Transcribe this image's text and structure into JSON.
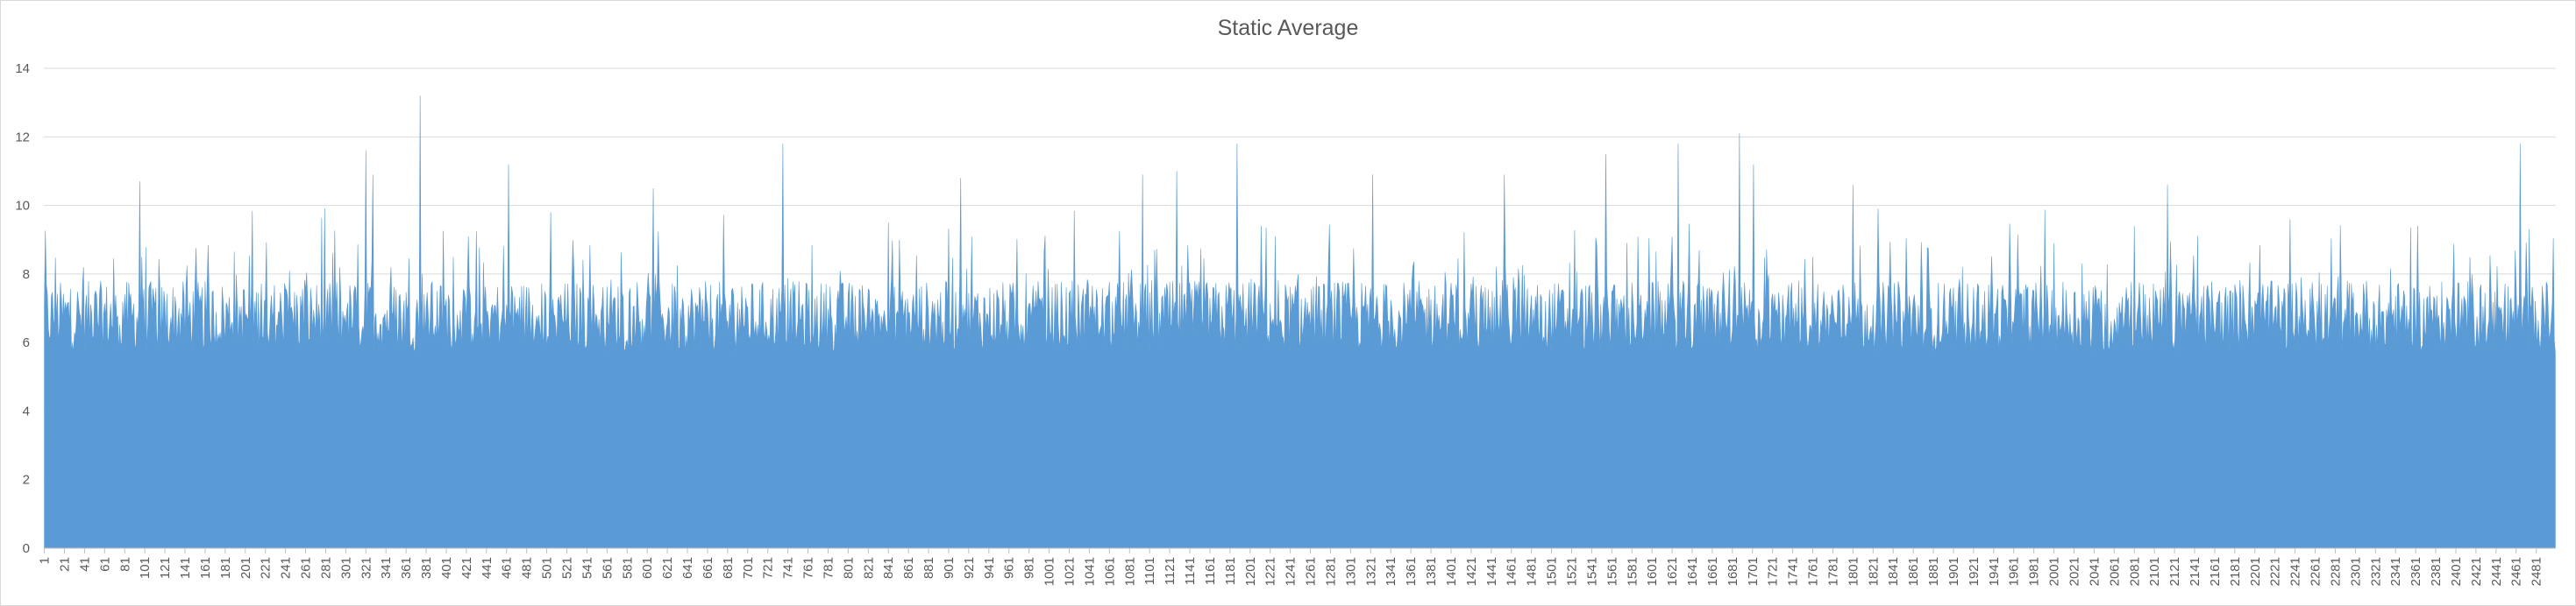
{
  "chart_data": {
    "type": "area",
    "title": "Static Average",
    "xlabel": "",
    "ylabel": "",
    "ylim": [
      0,
      14
    ],
    "yticks": [
      0,
      2,
      4,
      6,
      8,
      10,
      12,
      14
    ],
    "x_range": [
      1,
      2500
    ],
    "x_tick_labels_every": 20,
    "grid": "horizontal",
    "legend": "none",
    "colors": {
      "area": "#5b9bd5",
      "grid": "#d9d9d9",
      "axis": "#bfbfbf",
      "text": "#595959"
    },
    "series": [
      {
        "values_summary": "2500 points, baseline about 5.7 to 7.8, frequent spikes to 8 to 10",
        "notable_peaks": [
          {
            "x": 96,
            "y": 10.7
          },
          {
            "x": 321,
            "y": 11.6
          },
          {
            "x": 328,
            "y": 10.9
          },
          {
            "x": 375,
            "y": 13.2
          },
          {
            "x": 463,
            "y": 11.2
          },
          {
            "x": 607,
            "y": 10.5
          },
          {
            "x": 736,
            "y": 11.8
          },
          {
            "x": 913,
            "y": 10.8
          },
          {
            "x": 1094,
            "y": 10.9
          },
          {
            "x": 1128,
            "y": 11.0
          },
          {
            "x": 1188,
            "y": 11.8
          },
          {
            "x": 1323,
            "y": 10.9
          },
          {
            "x": 1454,
            "y": 10.9
          },
          {
            "x": 1555,
            "y": 11.5
          },
          {
            "x": 1627,
            "y": 11.8
          },
          {
            "x": 1688,
            "y": 12.1
          },
          {
            "x": 1702,
            "y": 11.2
          },
          {
            "x": 1801,
            "y": 10.6
          },
          {
            "x": 2114,
            "y": 10.6
          },
          {
            "x": 2465,
            "y": 11.8
          }
        ]
      }
    ]
  }
}
